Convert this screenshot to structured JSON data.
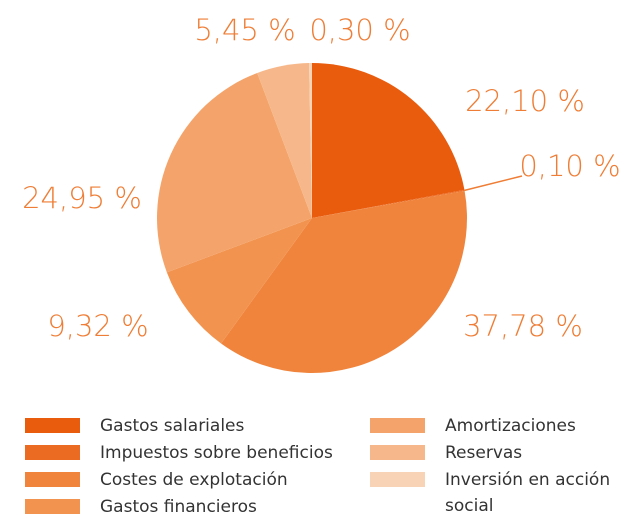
{
  "chart_data": {
    "type": "pie",
    "categories": [
      "Gastos salariales",
      "Impuestos sobre beneficios",
      "Costes de explotación",
      "Gastos financieros",
      "Amortizaciones",
      "Reservas",
      "Inversión en acción social"
    ],
    "values": [
      22.1,
      0.1,
      37.78,
      9.32,
      24.95,
      5.45,
      0.3
    ],
    "value_labels": [
      "22,10 %",
      "0,10 %",
      "37,78 %",
      "9,32 %",
      "24,95 %",
      "5,45 %",
      "0,30 %"
    ],
    "colors": [
      "#e95c0e",
      "#ec6b22",
      "#f0843c",
      "#f2944f",
      "#f4a46a",
      "#f6b88a",
      "#f9d3b6"
    ]
  }
}
